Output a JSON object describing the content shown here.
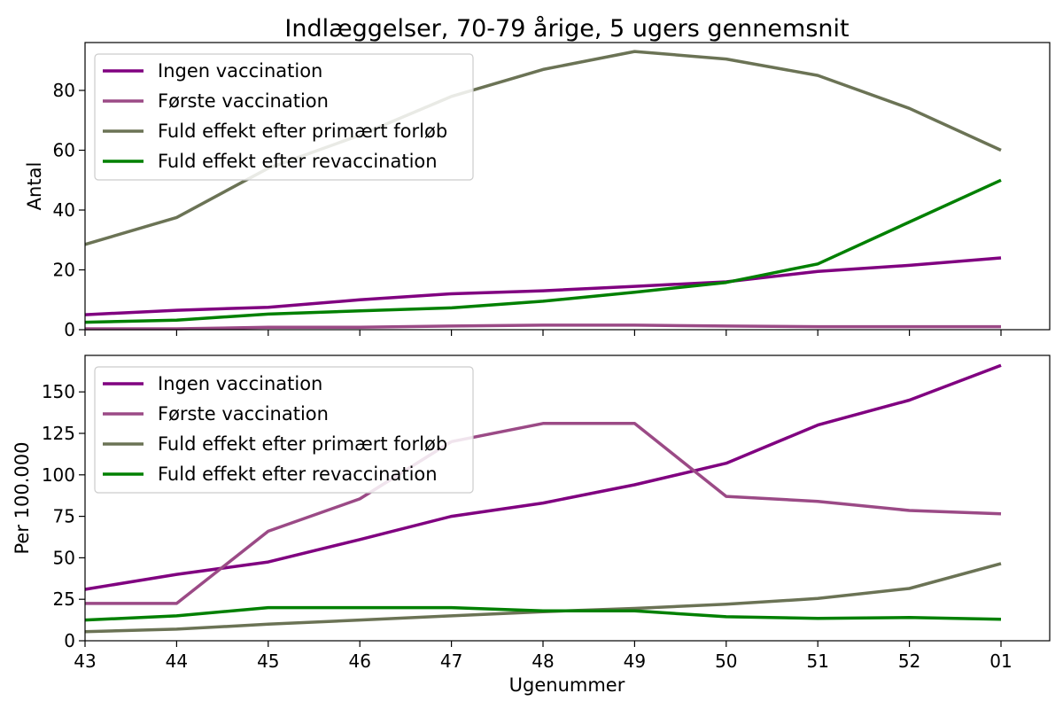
{
  "title": "Indlæggelser, 70-79 årige, 5 ugers gennemsnit",
  "xlabel": "Ugenummer",
  "chart_data": [
    {
      "type": "line",
      "ylabel": "Antal",
      "ylim": [
        0,
        96
      ],
      "yticks": [
        0,
        20,
        40,
        60,
        80
      ],
      "legend": "top-left",
      "grid": false,
      "categories": [
        "43",
        "44",
        "45",
        "46",
        "47",
        "48",
        "49",
        "50",
        "51",
        "52",
        "01"
      ],
      "series": [
        {
          "name": "Ingen vaccination",
          "color": "#800080",
          "values": [
            5,
            6.5,
            7.5,
            10,
            12,
            13,
            14.5,
            16,
            19.5,
            21.5,
            24
          ]
        },
        {
          "name": "Første vaccination",
          "color": "#9b4a86",
          "values": [
            0.3,
            0.3,
            0.8,
            0.8,
            1.2,
            1.5,
            1.5,
            1.2,
            1.0,
            1.0,
            1.0
          ]
        },
        {
          "name": "Fuld effekt efter primært forløb",
          "color": "#6b7355",
          "values": [
            28.5,
            37.5,
            54,
            65,
            78,
            87,
            93,
            90.5,
            85,
            74,
            60
          ]
        },
        {
          "name": "Fuld effekt efter revaccination",
          "color": "#008000",
          "values": [
            2.5,
            3.2,
            5.2,
            6.3,
            7.3,
            9.5,
            12.5,
            15.8,
            22,
            36,
            50
          ]
        }
      ]
    },
    {
      "type": "line",
      "ylabel": "Per 100.000",
      "ylim": [
        0,
        172
      ],
      "yticks": [
        0,
        25,
        50,
        75,
        100,
        125,
        150
      ],
      "legend": "top-left",
      "grid": false,
      "categories": [
        "43",
        "44",
        "45",
        "46",
        "47",
        "48",
        "49",
        "50",
        "51",
        "52",
        "01"
      ],
      "series": [
        {
          "name": "Ingen vaccination",
          "color": "#800080",
          "values": [
            31,
            40,
            47.5,
            61,
            75,
            83,
            94,
            107,
            130,
            145,
            166
          ]
        },
        {
          "name": "Første vaccination",
          "color": "#9b4a86",
          "values": [
            22.5,
            22.5,
            66,
            85.5,
            120,
            131,
            131,
            87,
            84,
            78.5,
            76.5
          ]
        },
        {
          "name": "Fuld effekt efter primært forløb",
          "color": "#6b7355",
          "values": [
            5.5,
            7,
            10,
            12.5,
            15,
            17.5,
            19.5,
            22,
            25.5,
            31.5,
            46.5
          ]
        },
        {
          "name": "Fuld effekt efter revaccination",
          "color": "#008000",
          "values": [
            12.5,
            15,
            20,
            20,
            20,
            18,
            18,
            14.5,
            13.5,
            14,
            13
          ]
        }
      ]
    }
  ]
}
